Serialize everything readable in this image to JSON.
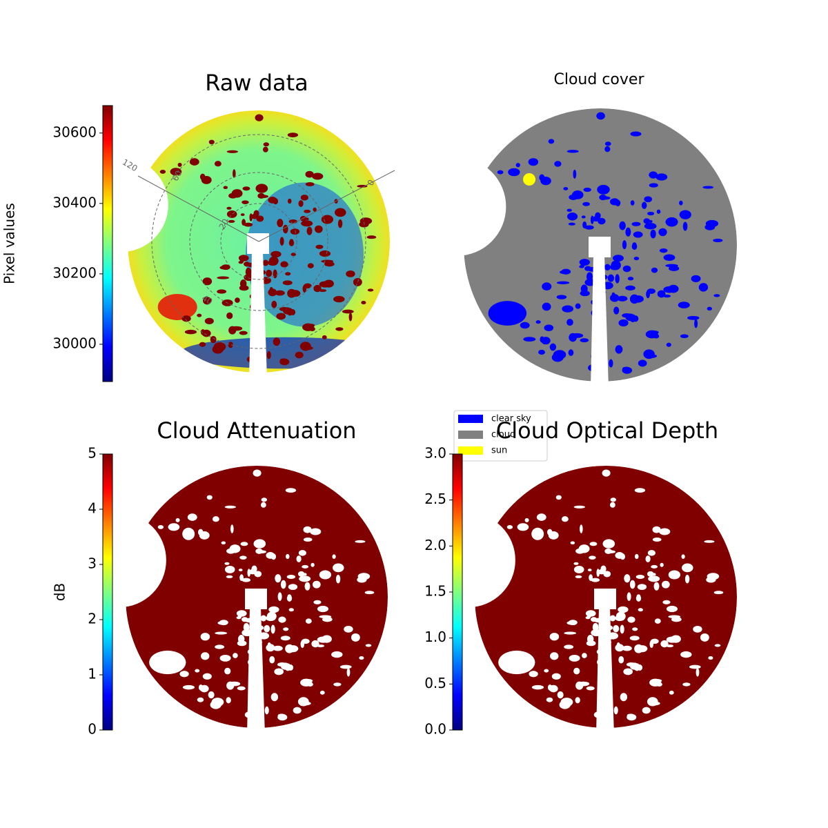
{
  "chart_data": [
    {
      "type": "image",
      "title": "Raw data",
      "colormap": "jet",
      "ylabel": "Pixel values",
      "ylim": [
        29894,
        30678
      ],
      "yticks": [
        30000,
        30200,
        30400,
        30600
      ],
      "annotations": [
        "120",
        "60",
        "20",
        "40",
        "0"
      ]
    },
    {
      "type": "image",
      "title": "Cloud cover",
      "series": [
        {
          "name": "clear sky",
          "color": "#0000ff"
        },
        {
          "name": "cloud",
          "color": "#808080"
        },
        {
          "name": "sun",
          "color": "#ffff00"
        }
      ]
    },
    {
      "type": "image",
      "title": "Cloud Attenuation",
      "colormap": "jet",
      "ylabel": "dB",
      "ylim": [
        0,
        5
      ],
      "yticks": [
        0,
        1,
        2,
        3,
        4,
        5
      ]
    },
    {
      "type": "image",
      "title": "Cloud Optical Depth",
      "colormap": "jet",
      "ylim": [
        0,
        3
      ],
      "yticks": [
        {
          "value": 0,
          "label": "0.0"
        },
        0.5,
        {
          "value": 1,
          "label": "1.0"
        },
        1.5,
        {
          "value": 2,
          "label": "2.0"
        },
        2.5,
        {
          "value": 3,
          "label": "3.0"
        }
      ]
    }
  ]
}
